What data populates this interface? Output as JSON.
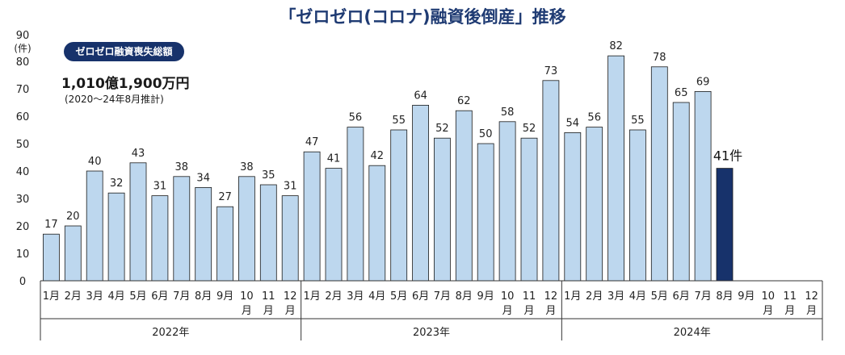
{
  "chart_data": {
    "type": "bar",
    "title": "「ゼロゼロ(コロナ)融資後倒産」推移",
    "ylabel_value": "90",
    "ylabel_unit": "(件)",
    "ylim": [
      0,
      90
    ],
    "yticks": [
      "0",
      "10",
      "20",
      "30",
      "40",
      "50",
      "60",
      "70",
      "80"
    ],
    "categories": [
      "1月",
      "2月",
      "3月",
      "4月",
      "5月",
      "6月",
      "7月",
      "8月",
      "9月",
      "10月",
      "11月",
      "12月",
      "1月",
      "2月",
      "3月",
      "4月",
      "5月",
      "6月",
      "7月",
      "8月",
      "9月",
      "10月",
      "11月",
      "12月",
      "1月",
      "2月",
      "3月",
      "4月",
      "5月",
      "6月",
      "7月",
      "8月",
      "9月",
      "10月",
      "11月",
      "12月"
    ],
    "values": [
      17,
      20,
      40,
      32,
      43,
      31,
      38,
      34,
      27,
      38,
      35,
      31,
      47,
      41,
      56,
      42,
      55,
      64,
      52,
      62,
      50,
      58,
      52,
      73,
      54,
      56,
      82,
      55,
      78,
      65,
      69,
      41,
      null,
      null,
      null,
      null
    ],
    "years": [
      "2022年",
      "2023年",
      "2024年"
    ],
    "highlight_label": "41件",
    "colors": {
      "bar": "#bdd7ee",
      "bar_edge": "#1a1a1a",
      "highlight": "#17326b",
      "title": "#1f3b73"
    }
  },
  "summary": {
    "badge": "ゼロゼロ融資喪失総額",
    "total": "1,010億1,900万円",
    "note": "(2020～24年8月推計)"
  }
}
